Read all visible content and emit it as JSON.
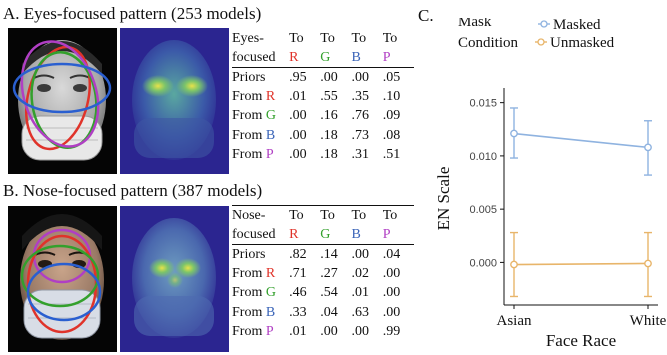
{
  "panel_a": {
    "title": "A. Eyes-focused pattern (253 models)",
    "table": {
      "header1": [
        "Eyes-",
        "To",
        "To",
        "To",
        "To"
      ],
      "header2": [
        "focused",
        "R",
        "G",
        "B",
        "P"
      ],
      "rows": [
        {
          "label": "Priors",
          "letter": "",
          "values": [
            ".95",
            ".00",
            ".00",
            ".05"
          ]
        },
        {
          "label": "From ",
          "letter": "R",
          "values": [
            ".01",
            ".55",
            ".35",
            ".10"
          ]
        },
        {
          "label": "From ",
          "letter": "G",
          "values": [
            ".00",
            ".16",
            ".76",
            ".09"
          ]
        },
        {
          "label": "From ",
          "letter": "B",
          "values": [
            ".00",
            ".18",
            ".73",
            ".08"
          ]
        },
        {
          "label": "From ",
          "letter": "P",
          "values": [
            ".00",
            ".18",
            ".31",
            ".51"
          ]
        }
      ]
    }
  },
  "panel_b": {
    "title": "B. Nose-focused pattern (387 models)",
    "table": {
      "header1": [
        "Nose-",
        "To",
        "To",
        "To",
        "To"
      ],
      "header2": [
        "focused",
        "R",
        "G",
        "B",
        "P"
      ],
      "rows": [
        {
          "label": "Priors",
          "letter": "",
          "values": [
            ".82",
            ".14",
            ".00",
            ".04"
          ]
        },
        {
          "label": "From ",
          "letter": "R",
          "values": [
            ".71",
            ".27",
            ".02",
            ".00"
          ]
        },
        {
          "label": "From ",
          "letter": "G",
          "values": [
            ".46",
            ".54",
            ".01",
            ".00"
          ]
        },
        {
          "label": "From ",
          "letter": "B",
          "values": [
            ".33",
            ".04",
            ".63",
            ".00"
          ]
        },
        {
          "label": "From ",
          "letter": "P",
          "values": [
            ".01",
            ".00",
            ".00",
            ".99"
          ]
        }
      ]
    }
  },
  "colors": {
    "R": "#e0332a",
    "G": "#33a02c",
    "B": "#3a64b8",
    "P": "#b03fc4",
    "masked": "#8fb3e0",
    "unmasked": "#e8b56a"
  },
  "panel_c": {
    "label": "C.",
    "chart_data": {
      "type": "line",
      "title": "",
      "xlabel": "Face Race",
      "ylabel": "EN Scale",
      "categories": [
        "Asian",
        "White"
      ],
      "ylim": [
        -0.004,
        0.016
      ],
      "yticks": [
        "0.000",
        "0.005",
        "0.010",
        "0.015"
      ],
      "ytick_values": [
        0.0,
        0.005,
        0.01,
        0.015
      ],
      "legend_title_lines": [
        "Mask",
        "Condition"
      ],
      "legend_position": "top",
      "grid": false,
      "series": [
        {
          "name": "Masked",
          "color": "#8fb3e0",
          "values": [
            0.0121,
            0.0108
          ],
          "err_low": [
            0.0098,
            0.0082
          ],
          "err_high": [
            0.0145,
            0.0133
          ]
        },
        {
          "name": "Unmasked",
          "color": "#e8b56a",
          "values": [
            -0.0002,
            -0.0001
          ],
          "err_low": [
            -0.0032,
            -0.0032
          ],
          "err_high": [
            0.0028,
            0.0028
          ]
        }
      ]
    }
  }
}
